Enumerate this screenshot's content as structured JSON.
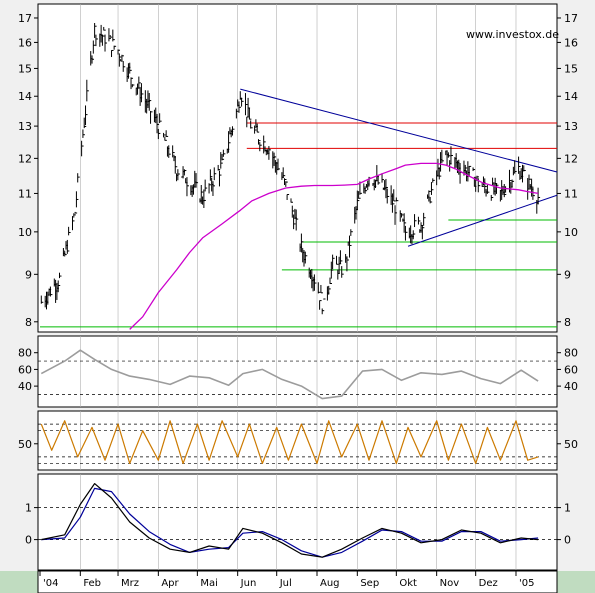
{
  "watermark": "www.investox.de",
  "months": [
    "'04",
    "Feb",
    "Mrz",
    "Apr",
    "Mai",
    "Jun",
    "Jul",
    "Aug",
    "Sep",
    "Okt",
    "Nov",
    "Dez",
    "'05"
  ],
  "colors": {
    "bg": "#ffffff",
    "grid": "#b0b0b0",
    "price": "#000000",
    "ma": "#cc00cc",
    "trendline": "#000099",
    "resistance": "#e00000",
    "support": "#00bb00",
    "rsi": "#9c9c9c",
    "stoch": "#cc7a00",
    "macd": "#000000",
    "signal": "#000099",
    "timebar": "#c0dcc0"
  },
  "chart_data": [
    {
      "type": "line",
      "panel": "price",
      "y_scale": "log",
      "ylim": [
        7.8,
        17.6
      ],
      "yticks": [
        8,
        9,
        10,
        11,
        12,
        13,
        14,
        15,
        16,
        17
      ],
      "x": [
        "2004-01-02",
        "2004-01-16",
        "2004-01-28",
        "2004-02-05",
        "2004-02-12",
        "2004-02-20",
        "2004-03-01",
        "2004-03-10",
        "2004-03-20",
        "2004-04-01",
        "2004-04-15",
        "2004-04-25",
        "2004-05-05",
        "2004-05-20",
        "2004-06-01",
        "2004-06-03",
        "2004-06-12",
        "2004-06-25",
        "2004-07-08",
        "2004-07-20",
        "2004-07-30",
        "2004-08-06",
        "2004-08-13",
        "2004-08-22",
        "2004-09-01",
        "2004-09-10",
        "2004-09-20",
        "2004-10-01",
        "2004-10-08",
        "2004-10-20",
        "2004-11-01",
        "2004-11-08",
        "2004-11-15",
        "2004-11-25",
        "2004-12-06",
        "2004-12-20",
        "2005-01-03",
        "2005-01-10",
        "2005-01-18"
      ],
      "series": [
        {
          "values": [
            8.4,
            8.9,
            10.5,
            13.5,
            16.5,
            16.2,
            15.7,
            14.8,
            14.0,
            13.0,
            11.7,
            11.3,
            10.9,
            11.8,
            13.6,
            14.2,
            12.9,
            12.3,
            11.2,
            9.6,
            8.9,
            8.3,
            9.2,
            9.1,
            10.7,
            11.5,
            11.2,
            10.6,
            10.0,
            10.2,
            11.5,
            12.1,
            11.9,
            11.6,
            11.2,
            11.0,
            11.7,
            11.3,
            10.9
          ]
        },
        {
          "values": [
            null,
            null,
            null,
            null,
            null,
            null,
            null,
            7.85,
            8.1,
            8.6,
            9.1,
            9.5,
            9.85,
            10.2,
            10.5,
            10.55,
            10.8,
            11.0,
            11.15,
            11.2,
            11.22,
            11.22,
            11.22,
            11.23,
            11.25,
            11.4,
            11.55,
            11.7,
            11.8,
            11.85,
            11.85,
            11.8,
            11.7,
            11.5,
            11.3,
            11.15,
            11.1,
            11.05,
            11.0
          ]
        }
      ],
      "levels_red": [
        13.1,
        12.3
      ],
      "levels_green": [
        10.3,
        9.75,
        9.1,
        7.9
      ]
    },
    {
      "type": "line",
      "panel": "rsi",
      "ylim": [
        15,
        100
      ],
      "yticks": [
        40,
        60,
        80
      ],
      "x": [
        "2004-01-02",
        "2004-01-20",
        "2004-02-01",
        "2004-02-12",
        "2004-02-25",
        "2004-03-10",
        "2004-03-25",
        "2004-04-10",
        "2004-04-25",
        "2004-05-10",
        "2004-05-25",
        "2004-06-05",
        "2004-06-20",
        "2004-07-05",
        "2004-07-20",
        "2004-08-05",
        "2004-08-20",
        "2004-09-05",
        "2004-09-20",
        "2004-10-05",
        "2004-10-20",
        "2004-11-05",
        "2004-11-20",
        "2004-12-05",
        "2004-12-20",
        "2005-01-05",
        "2005-01-18"
      ],
      "values": [
        55,
        70,
        83,
        72,
        60,
        52,
        48,
        42,
        52,
        50,
        41,
        55,
        60,
        48,
        40,
        25,
        28,
        58,
        60,
        47,
        56,
        54,
        58,
        49,
        43,
        59,
        46
      ]
    },
    {
      "type": "line",
      "panel": "stochastic",
      "ylim": [
        10,
        100
      ],
      "yticks": [
        50
      ],
      "x": [
        "2004-01-02",
        "2004-01-10",
        "2004-01-20",
        "2004-01-30",
        "2004-02-10",
        "2004-02-20",
        "2004-03-01",
        "2004-03-10",
        "2004-03-20",
        "2004-04-01",
        "2004-04-10",
        "2004-04-20",
        "2004-05-01",
        "2004-05-10",
        "2004-05-20",
        "2004-06-01",
        "2004-06-10",
        "2004-06-20",
        "2004-07-01",
        "2004-07-10",
        "2004-07-20",
        "2004-08-01",
        "2004-08-10",
        "2004-08-20",
        "2004-09-01",
        "2004-09-10",
        "2004-09-20",
        "2004-10-01",
        "2004-10-10",
        "2004-10-20",
        "2004-11-01",
        "2004-11-10",
        "2004-11-20",
        "2004-12-01",
        "2004-12-10",
        "2004-12-20",
        "2005-01-01",
        "2005-01-10",
        "2005-01-18"
      ],
      "values": [
        80,
        40,
        85,
        30,
        75,
        25,
        80,
        20,
        70,
        25,
        85,
        20,
        80,
        25,
        85,
        30,
        80,
        20,
        75,
        25,
        80,
        20,
        85,
        30,
        80,
        25,
        85,
        20,
        75,
        30,
        85,
        25,
        80,
        20,
        75,
        25,
        85,
        25,
        30
      ]
    },
    {
      "type": "line",
      "panel": "macd",
      "ylim": [
        -0.95,
        2.05
      ],
      "yticks": [
        0,
        1
      ],
      "x": [
        "2004-01-02",
        "2004-01-20",
        "2004-02-01",
        "2004-02-12",
        "2004-02-25",
        "2004-03-10",
        "2004-03-25",
        "2004-04-10",
        "2004-04-25",
        "2004-05-10",
        "2004-05-25",
        "2004-06-05",
        "2004-06-20",
        "2004-07-05",
        "2004-07-20",
        "2004-08-05",
        "2004-08-20",
        "2004-09-05",
        "2004-09-20",
        "2004-10-05",
        "2004-10-20",
        "2004-11-05",
        "2004-11-20",
        "2004-12-05",
        "2004-12-20",
        "2005-01-05",
        "2005-01-18"
      ],
      "series": [
        {
          "values": [
            0.0,
            0.15,
            1.1,
            1.75,
            1.3,
            0.55,
            0.05,
            -0.3,
            -0.4,
            -0.2,
            -0.3,
            0.35,
            0.2,
            -0.1,
            -0.45,
            -0.55,
            -0.3,
            0.05,
            0.35,
            0.2,
            -0.1,
            0.0,
            0.3,
            0.2,
            -0.1,
            0.05,
            0.0
          ]
        },
        {
          "values": [
            0.0,
            0.05,
            0.7,
            1.6,
            1.5,
            0.8,
            0.25,
            -0.15,
            -0.4,
            -0.3,
            -0.25,
            0.2,
            0.25,
            0.0,
            -0.35,
            -0.55,
            -0.4,
            -0.05,
            0.3,
            0.25,
            -0.05,
            -0.05,
            0.25,
            0.25,
            -0.05,
            0.0,
            0.05
          ]
        }
      ]
    }
  ]
}
